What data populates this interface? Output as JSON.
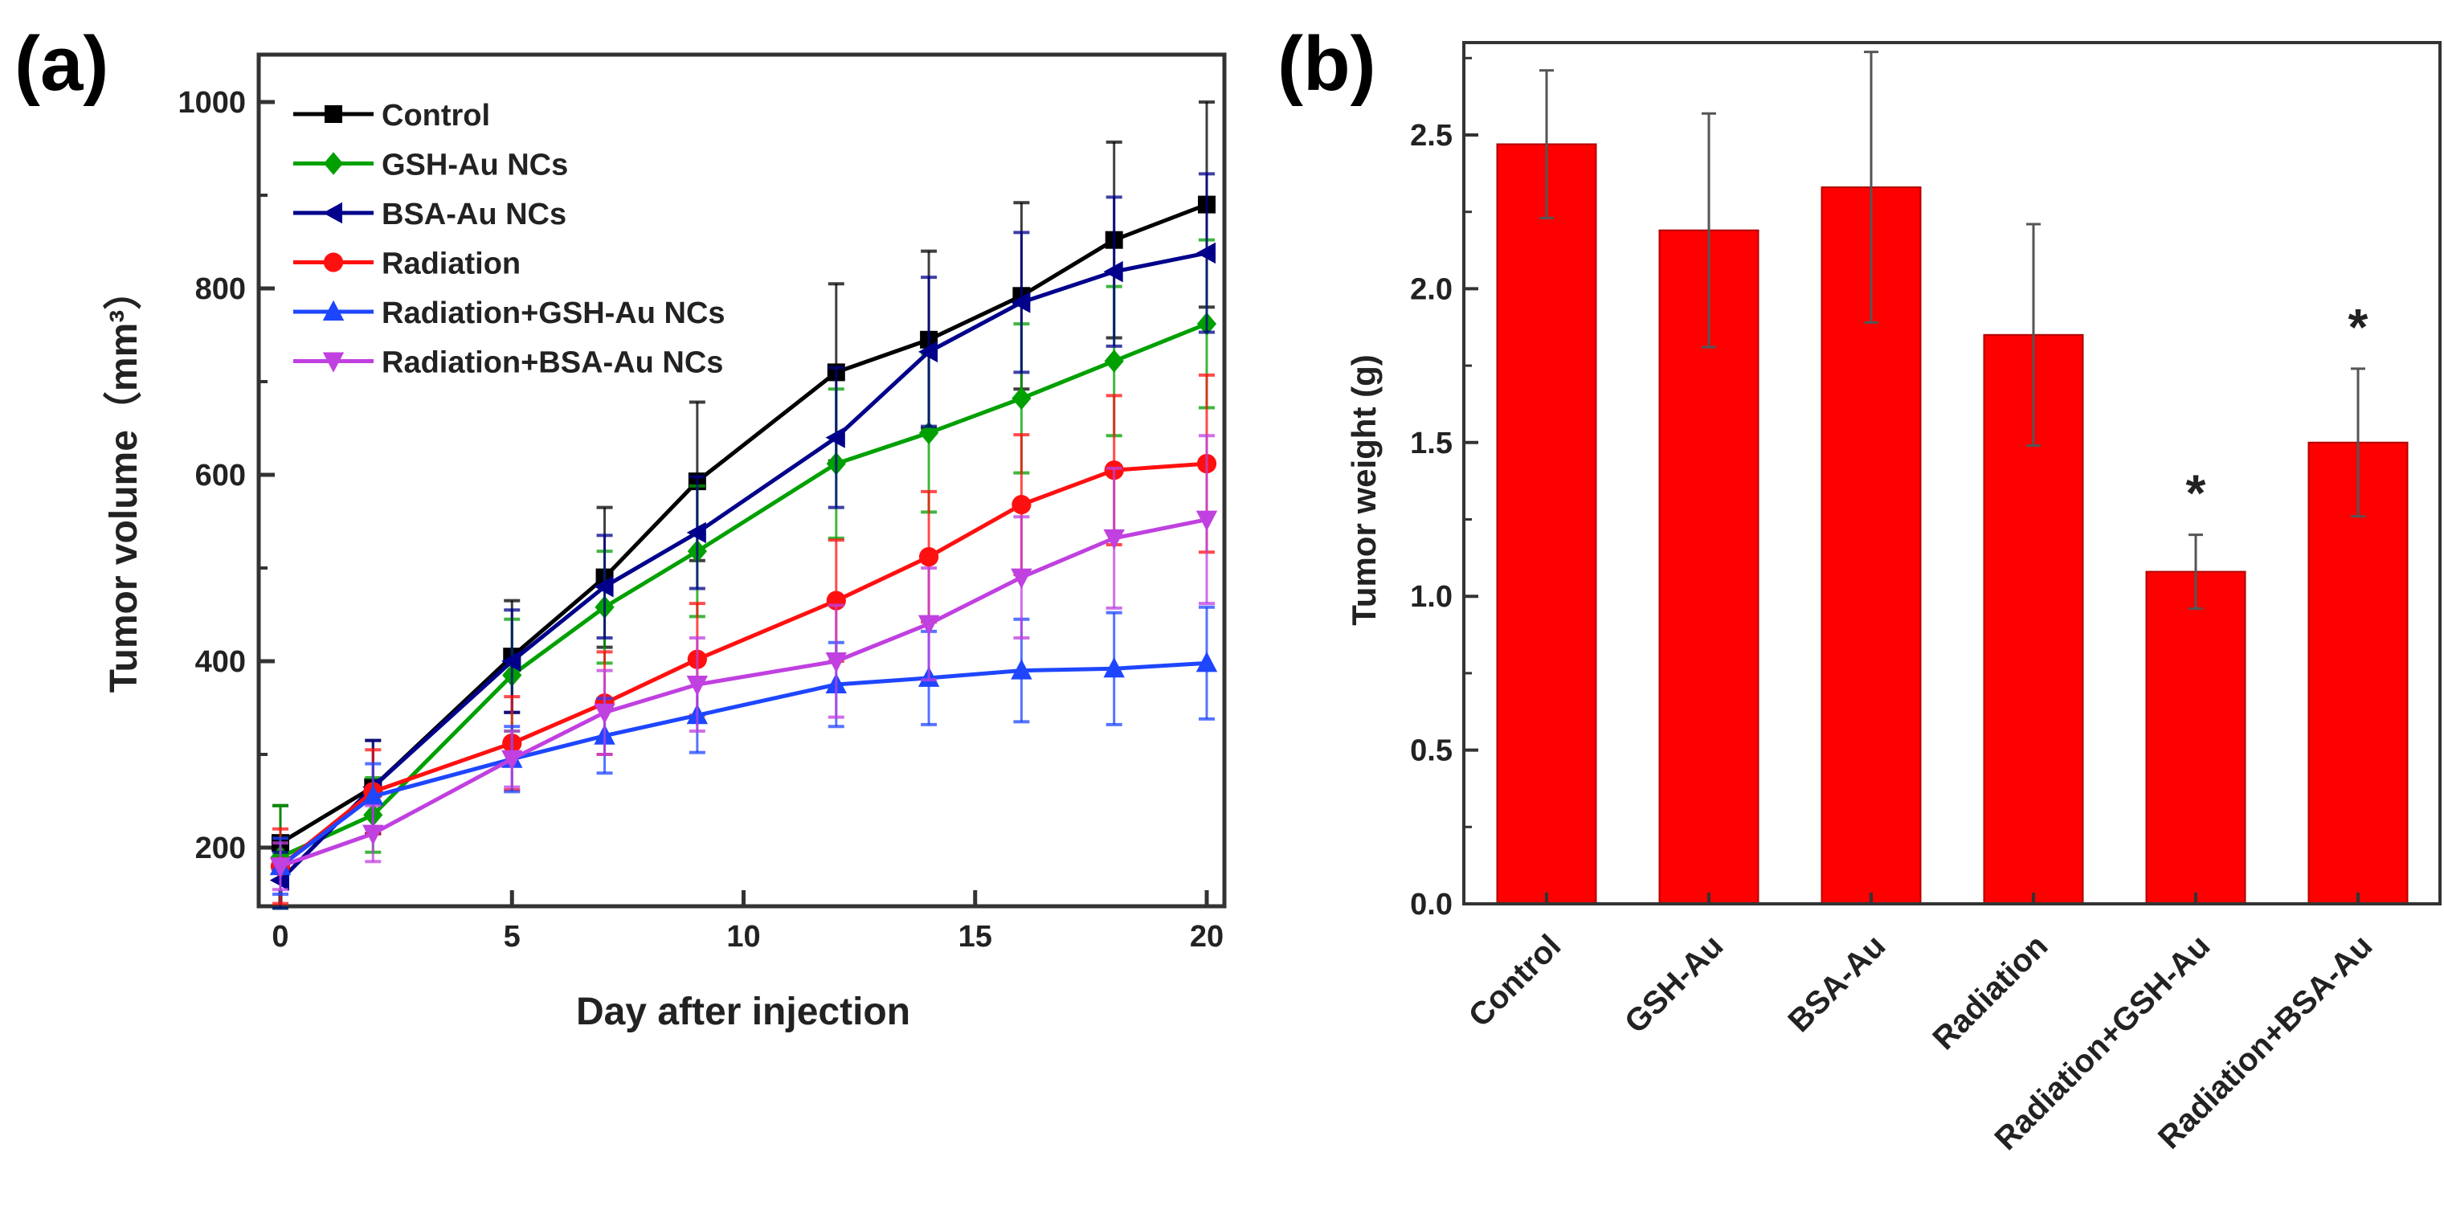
{
  "chart_data": [
    {
      "panel_label": "(a)",
      "type": "line",
      "xlabel": "Day after injection",
      "ylabel": "Tumor volume（mm³）",
      "xlim": [
        -0.5,
        20.5
      ],
      "ylim": [
        138,
        1060
      ],
      "xticks": [
        0,
        5,
        10,
        15,
        20
      ],
      "yticks": [
        200,
        400,
        600,
        800,
        1000
      ],
      "grid": false,
      "legend_position": "top-left",
      "x": [
        0,
        2,
        5,
        7,
        9,
        12,
        14,
        16,
        18,
        20
      ],
      "series": [
        {
          "name": "Control",
          "color": "#000000",
          "marker": "square",
          "values": [
            205,
            265,
            405,
            490,
            593,
            710,
            745,
            792,
            852,
            890
          ],
          "errors": [
            40,
            50,
            60,
            75,
            85,
            95,
            95,
            100,
            105,
            110
          ]
        },
        {
          "name": "GSH-Au NCs",
          "color": "#00a000",
          "marker": "diamond",
          "values": [
            190,
            235,
            385,
            458,
            518,
            612,
            645,
            682,
            722,
            762
          ],
          "errors": [
            55,
            40,
            60,
            60,
            70,
            80,
            85,
            80,
            80,
            90
          ]
        },
        {
          "name": "BSA-Au NCs",
          "color": "#00008b",
          "marker": "triangle-left",
          "values": [
            165,
            265,
            400,
            480,
            538,
            640,
            732,
            785,
            818,
            838
          ],
          "errors": [
            30,
            50,
            55,
            55,
            60,
            75,
            80,
            75,
            80,
            85
          ]
        },
        {
          "name": "Radiation",
          "color": "#ff1010",
          "marker": "circle",
          "values": [
            180,
            260,
            312,
            355,
            402,
            465,
            512,
            568,
            605,
            612
          ],
          "errors": [
            40,
            45,
            50,
            55,
            60,
            65,
            70,
            75,
            80,
            95
          ]
        },
        {
          "name": "Radiation+GSH-Au NCs",
          "color": "#1e46ff",
          "marker": "triangle-up",
          "values": [
            180,
            255,
            295,
            320,
            342,
            375,
            382,
            390,
            392,
            398
          ],
          "errors": [
            30,
            35,
            35,
            40,
            40,
            45,
            50,
            55,
            60,
            60
          ]
        },
        {
          "name": "Radiation+BSA-Au NCs",
          "color": "#c040e0",
          "marker": "triangle-down",
          "values": [
            180,
            215,
            295,
            345,
            375,
            400,
            440,
            490,
            532,
            552
          ],
          "errors": [
            25,
            30,
            30,
            45,
            50,
            60,
            60,
            65,
            75,
            90
          ]
        }
      ]
    },
    {
      "panel_label": "(b)",
      "type": "bar",
      "xlabel": "",
      "ylabel": "Tumor weight (g)",
      "ylim": [
        0,
        2.8
      ],
      "yticks": [
        "0.0",
        "0.5",
        "1.0",
        "1.5",
        "2.0",
        "2.5"
      ],
      "grid": false,
      "bar_color": "#ff0000",
      "categories": [
        "Control",
        "GSH-Au",
        "BSA-Au",
        "Radiation",
        "Radiation+GSH-Au",
        "Radiation+BSA-Au"
      ],
      "values": [
        2.47,
        2.19,
        2.33,
        1.85,
        1.08,
        1.5
      ],
      "errors": [
        0.24,
        0.38,
        0.44,
        0.36,
        0.12,
        0.24
      ],
      "annotations": [
        "",
        "",
        "",
        "",
        "*",
        "*"
      ]
    }
  ]
}
